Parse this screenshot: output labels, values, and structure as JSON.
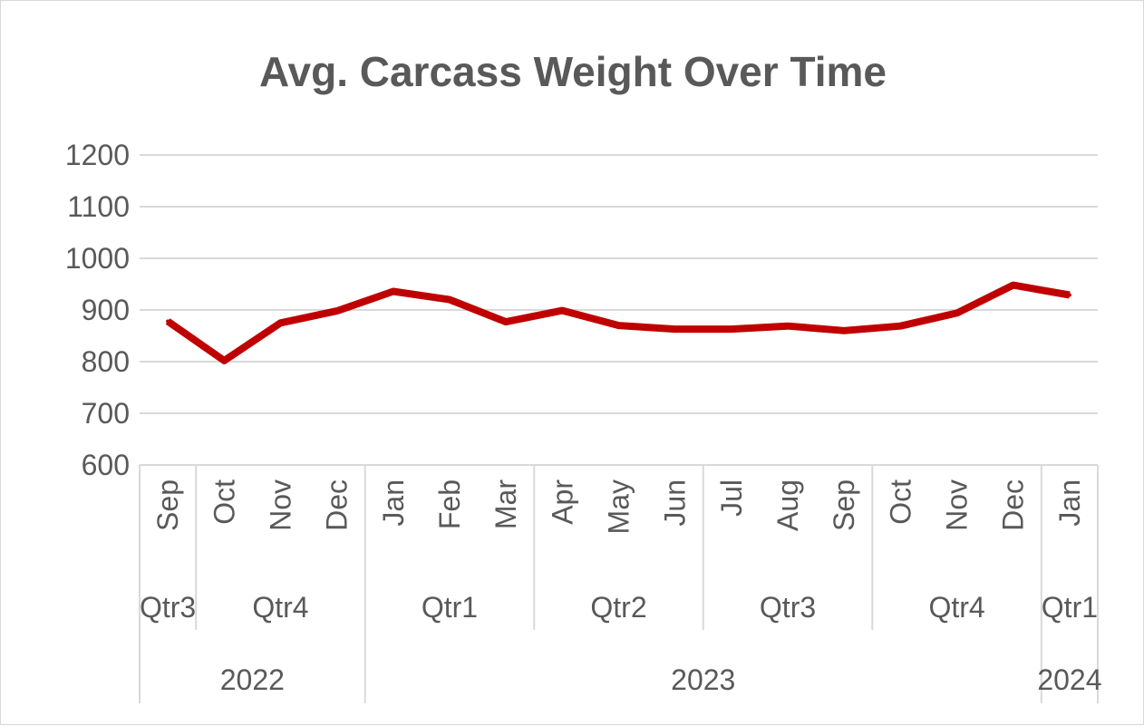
{
  "chart_data": {
    "type": "line",
    "title": "Avg. Carcass Weight Over Time",
    "xlabel": "",
    "ylabel": "",
    "ylim": [
      600,
      1200
    ],
    "y_ticks": [
      600,
      700,
      800,
      900,
      1000,
      1100,
      1200
    ],
    "grid": true,
    "legend": "none",
    "line_color": "#C00000",
    "categories": [
      "Sep",
      "Oct",
      "Nov",
      "Dec",
      "Jan",
      "Feb",
      "Mar",
      "Apr",
      "May",
      "Jun",
      "Jul",
      "Aug",
      "Sep",
      "Oct",
      "Nov",
      "Dec",
      "Jan"
    ],
    "quarters": [
      {
        "label": "Qtr3",
        "start": 0,
        "end": 0
      },
      {
        "label": "Qtr4",
        "start": 1,
        "end": 3
      },
      {
        "label": "Qtr1",
        "start": 4,
        "end": 6
      },
      {
        "label": "Qtr2",
        "start": 7,
        "end": 9
      },
      {
        "label": "Qtr3",
        "start": 10,
        "end": 12
      },
      {
        "label": "Qtr4",
        "start": 13,
        "end": 15
      },
      {
        "label": "Qtr1",
        "start": 16,
        "end": 16
      }
    ],
    "years": [
      {
        "label": "2022",
        "start": 0,
        "end": 3
      },
      {
        "label": "2023",
        "start": 4,
        "end": 15
      },
      {
        "label": "2024",
        "start": 16,
        "end": 16
      }
    ],
    "series": [
      {
        "values": [
          878,
          802,
          875,
          898,
          936,
          920,
          877,
          899,
          870,
          863,
          863,
          869,
          860,
          869,
          894,
          948,
          929
        ]
      }
    ]
  }
}
